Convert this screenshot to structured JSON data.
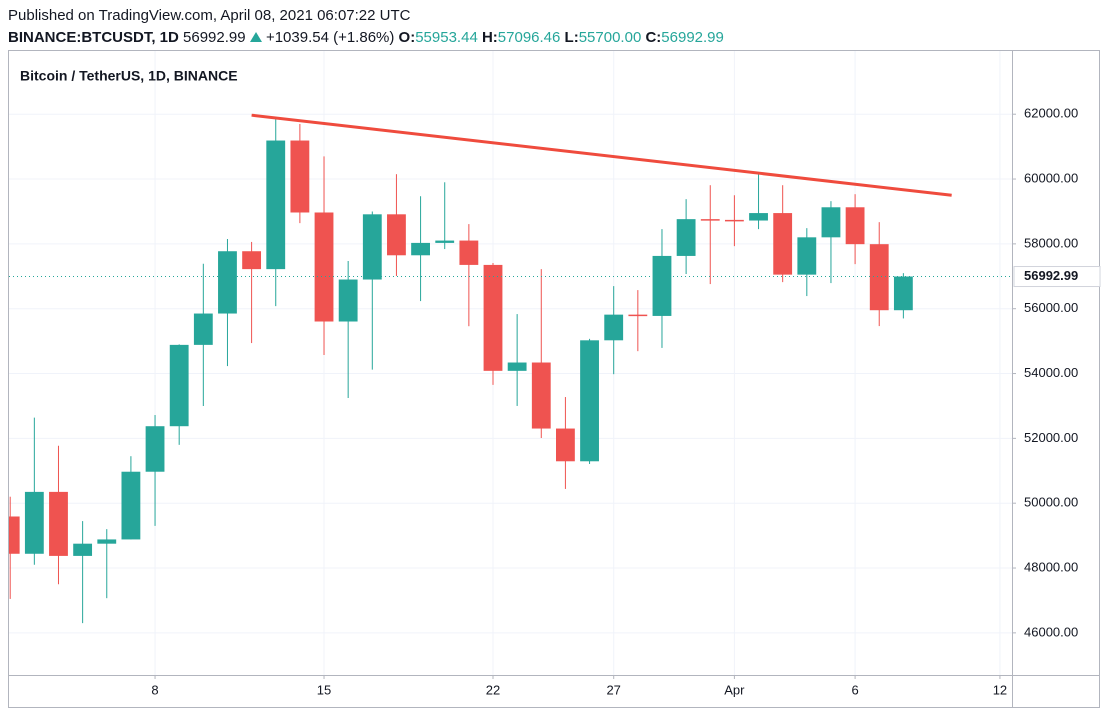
{
  "header": {
    "published": "Published on TradingView.com, April 08, 2021 06:07:22 UTC",
    "symbol": "BINANCE:BTCUSDT, 1D",
    "last": "56992.99",
    "change": "+1039.54 (+1.86%)",
    "open_label": "O:",
    "open": "55953.44",
    "high_label": "H:",
    "high": "57096.46",
    "low_label": "L:",
    "low": "55700.00",
    "close_label": "C:",
    "close": "56992.99"
  },
  "chart_data": {
    "type": "candlestick",
    "title": "Bitcoin / TetherUS, 1D, BINANCE",
    "x": [
      2,
      3,
      4,
      5,
      6,
      7,
      8,
      9,
      10,
      11,
      12,
      13,
      14,
      15,
      16,
      17,
      18,
      19,
      20,
      21,
      22,
      23,
      24,
      25,
      26,
      27,
      28,
      29,
      30,
      31,
      32,
      33,
      34,
      35,
      36,
      37,
      38,
      39
    ],
    "open": [
      49590,
      48440,
      50349,
      48374,
      48751,
      48882,
      50971,
      52375,
      54884,
      55851,
      57773,
      57221,
      61188,
      58968,
      55605,
      56900,
      58912,
      57648,
      58030,
      58102,
      57351,
      54083,
      54340,
      52303,
      51293,
      55025,
      55817,
      55777,
      57628,
      58763,
      58740,
      58720,
      58950,
      57051,
      58202,
      59129,
      57991,
      55953.44
    ],
    "high": [
      50200,
      52640,
      51773,
      49448,
      49200,
      51450,
      52720,
      54900,
      57387,
      58150,
      58060,
      61844,
      61700,
      60700,
      57470,
      59000,
      60150,
      59470,
      59900,
      58610,
      57410,
      55834,
      57221,
      53275,
      55070,
      56697,
      56574,
      58455,
      59380,
      59810,
      59500,
      60180,
      59810,
      58485,
      59318,
      59533,
      58670,
      57096.46
    ],
    "low": [
      47047,
      48100,
      47500,
      46300,
      47070,
      48880,
      49300,
      51800,
      53000,
      54230,
      54940,
      56080,
      58640,
      54570,
      53245,
      54120,
      57010,
      56235,
      57840,
      55460,
      53650,
      53000,
      52010,
      50440,
      51210,
      53980,
      54690,
      54790,
      57070,
      56760,
      57930,
      58455,
      56820,
      56390,
      56790,
      57375,
      55464,
      55700
    ],
    "close": [
      48440,
      50349,
      48374,
      48751,
      48882,
      50971,
      52375,
      54884,
      55851,
      57773,
      57221,
      61188,
      58968,
      55605,
      56900,
      58912,
      57648,
      58030,
      58102,
      57351,
      54083,
      54340,
      52303,
      51293,
      55025,
      55817,
      55777,
      57628,
      58763,
      58740,
      58720,
      58950,
      57051,
      58202,
      59129,
      57991,
      55953.44,
      56992.99
    ],
    "up_color": "#26a69a",
    "down_color": "#ef5350",
    "last_price": 56992.99,
    "trendline": {
      "x": [
        12.0,
        41.0
      ],
      "values": [
        61970,
        59500
      ],
      "color": "#ef4b3d"
    },
    "xlim": [
      1.95,
      43.5
    ],
    "ylim": [
      44700,
      63950
    ],
    "xticks": [
      8,
      15,
      22,
      27,
      {
        "value": 32,
        "label": "Apr"
      },
      {
        "value": 37,
        "label": "6"
      },
      {
        "value": 43,
        "label": "12"
      }
    ],
    "yticks": [
      {
        "value": 46000,
        "label": "46000.00"
      },
      {
        "value": 48000,
        "label": "48000.00"
      },
      {
        "value": 50000,
        "label": "50000.00"
      },
      {
        "value": 52000,
        "label": "52000.00"
      },
      {
        "value": 54000,
        "label": "54000.00"
      },
      {
        "value": 56000,
        "label": "56000.00"
      },
      {
        "value": 58000,
        "label": "58000.00"
      },
      {
        "value": 60000,
        "label": "60000.00"
      },
      {
        "value": 62000,
        "label": "62000.00"
      }
    ],
    "grid": true
  }
}
